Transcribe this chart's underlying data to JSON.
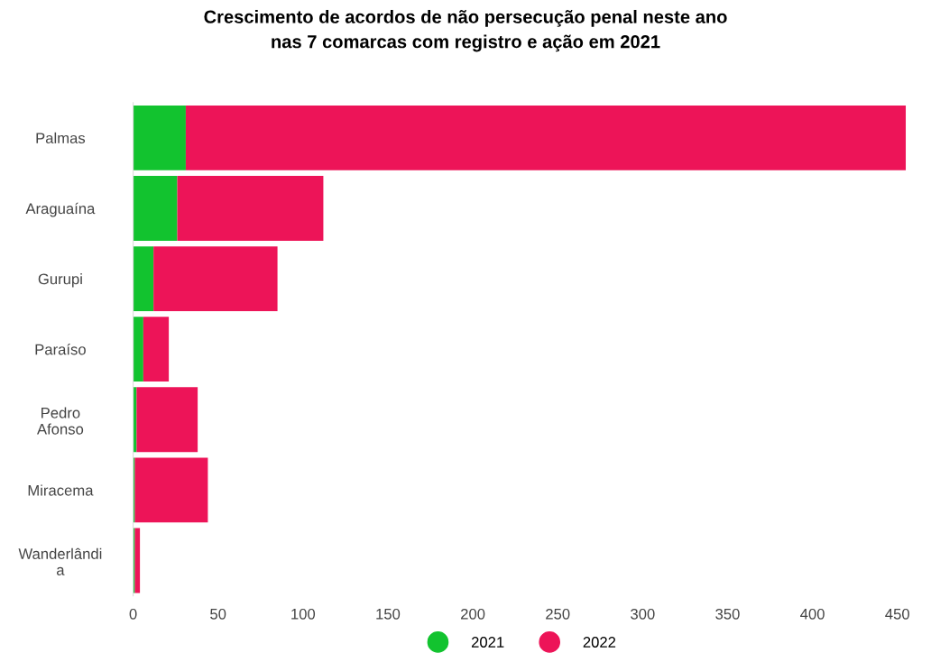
{
  "chart_data": {
    "type": "bar",
    "orientation": "horizontal",
    "stacked": true,
    "title": "Crescimento de acordos de não persecução penal neste ano\nnas 7 comarcas com registro e ação em 2021",
    "categories": [
      "Palmas",
      "Araguaína",
      "Gurupi",
      "Paraíso",
      "Pedro\nAfonso",
      "Miracema",
      "Wanderlândi\na"
    ],
    "series": [
      {
        "name": "2021",
        "color": "#12c32f",
        "values": [
          31,
          26,
          12,
          6,
          2,
          1,
          1
        ]
      },
      {
        "name": "2022",
        "color": "#ed1458",
        "values": [
          424,
          86,
          73,
          15,
          36,
          43,
          3
        ]
      }
    ],
    "xlim": [
      0,
      455
    ],
    "xticks": [
      0,
      50,
      100,
      150,
      200,
      250,
      300,
      350,
      400,
      450
    ],
    "grid": false,
    "legend": "bottom"
  }
}
